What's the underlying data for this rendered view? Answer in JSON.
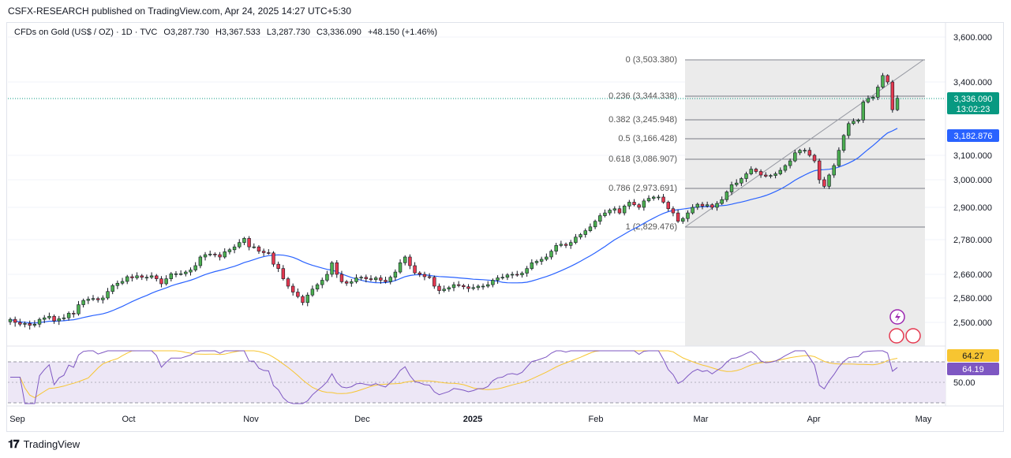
{
  "header": "CSFX-RESEARCH published on TradingView.com, Apr 24, 2025 14:27 UTC+5:30",
  "symbol": {
    "name": "CFDs on Gold (US$ / OZ) · 1D · TVC",
    "open": "O3,287.730",
    "high": "H3,367.533",
    "low": "L3,287.730",
    "close": "C3,336.090",
    "change": "+48.150 (+1.46%)"
  },
  "footer": {
    "brand": "TradingView"
  },
  "colors": {
    "up": "#4caf50",
    "down": "#e53950",
    "ma": "#2962ff",
    "rsi": "#7e57c2",
    "rsi_ma": "#f7c531",
    "fib": "#787b86",
    "price_tag": "#089981",
    "ma_tag": "#2962ff",
    "rsi_tag": "#7e57c2",
    "rsi_ma_tag": "#f7c531"
  },
  "chart_data": {
    "type": "candlestick",
    "x_labels": [
      "Sep",
      "Oct",
      "Nov",
      "Dec",
      "2025",
      "Feb",
      "Mar",
      "Apr",
      "May"
    ],
    "y_ticks": [
      "3,600.000",
      "3,400.000",
      "3,100.000",
      "3,000.000",
      "2,900.000",
      "2,780.000",
      "2,660.000",
      "2,580.000",
      "2,500.000"
    ],
    "y_ticks_values": [
      3600,
      3400,
      3100,
      3000,
      2900,
      2780,
      2660,
      2580,
      2500
    ],
    "last_price": "3,336.090",
    "countdown": "13:02:23",
    "ma_value": "3,182.876",
    "fib_levels": [
      {
        "ratio": "0",
        "value": "(3,503.380)",
        "price": 3503.38
      },
      {
        "ratio": "0.236",
        "value": "(3,344.338)",
        "price": 3344.338
      },
      {
        "ratio": "0.382",
        "value": "(3,245.948)",
        "price": 3245.948
      },
      {
        "ratio": "0.5",
        "value": "(3,166.428)",
        "price": 3166.428
      },
      {
        "ratio": "0.618",
        "value": "(3,086.907)",
        "price": 3086.907
      },
      {
        "ratio": "0.786",
        "value": "(2,973.691)",
        "price": 2973.691
      },
      {
        "ratio": "1",
        "value": "(2,829.476)",
        "price": 2829.476
      }
    ],
    "closes": [
      2510,
      2500,
      2495,
      2497,
      2492,
      2495,
      2510,
      2515,
      2520,
      2505,
      2512,
      2515,
      2530,
      2528,
      2558,
      2572,
      2576,
      2578,
      2574,
      2580,
      2602,
      2622,
      2630,
      2636,
      2652,
      2648,
      2655,
      2650,
      2650,
      2655,
      2645,
      2628,
      2645,
      2662,
      2662,
      2662,
      2668,
      2675,
      2690,
      2720,
      2728,
      2730,
      2728,
      2720,
      2738,
      2745,
      2755,
      2770,
      2785,
      2755,
      2755,
      2740,
      2735,
      2734,
      2695,
      2680,
      2645,
      2620,
      2600,
      2585,
      2565,
      2590,
      2610,
      2625,
      2640,
      2660,
      2700,
      2660,
      2635,
      2630,
      2635,
      2648,
      2650,
      2645,
      2642,
      2648,
      2640,
      2635,
      2650,
      2668,
      2700,
      2720,
      2690,
      2665,
      2660,
      2652,
      2650,
      2620,
      2605,
      2610,
      2615,
      2625,
      2622,
      2618,
      2612,
      2615,
      2620,
      2620,
      2625,
      2640,
      2648,
      2650,
      2658,
      2660,
      2658,
      2664,
      2680,
      2700,
      2705,
      2712,
      2720,
      2740,
      2760,
      2764,
      2760,
      2770,
      2790,
      2800,
      2815,
      2830,
      2850,
      2870,
      2880,
      2890,
      2895,
      2880,
      2905,
      2920,
      2910,
      2900,
      2925,
      2935,
      2940,
      2940,
      2920,
      2895,
      2880,
      2850,
      2860,
      2880,
      2900,
      2912,
      2905,
      2910,
      2900,
      2915,
      2930,
      2960,
      2985,
      2990,
      3005,
      3025,
      3045,
      3035,
      3020,
      3015,
      3018,
      3025,
      3040,
      3060,
      3080,
      3110,
      3120,
      3120,
      3100,
      3080,
      3000,
      2980,
      3020,
      3060,
      3120,
      3180,
      3230,
      3240,
      3245,
      3320,
      3335,
      3340,
      3380,
      3430,
      3400,
      3288,
      3336
    ],
    "rsi_ticks": [
      "50.00"
    ],
    "rsi_value": "64.19",
    "rsi_ma_value": "64.27"
  }
}
